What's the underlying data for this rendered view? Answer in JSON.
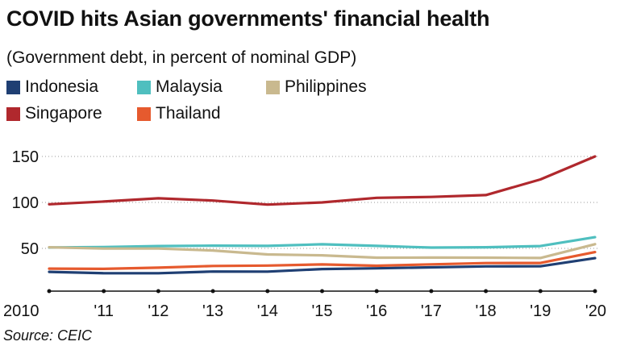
{
  "title": "COVID hits Asian governments' financial health",
  "subtitle": "(Government debt, in percent of nominal GDP)",
  "source": "Source: CEIC",
  "legend": [
    {
      "label": "Indonesia",
      "color": "#1f3f73"
    },
    {
      "label": "Malaysia",
      "color": "#4fbfbf"
    },
    {
      "label": "Philippines",
      "color": "#c9b98f"
    },
    {
      "label": "Singapore",
      "color": "#b0282d"
    },
    {
      "label": "Thailand",
      "color": "#e65a2e"
    }
  ],
  "chart_data": {
    "type": "line",
    "title": "COVID hits Asian governments' financial health",
    "subtitle": "(Government debt, in percent of nominal GDP)",
    "xlabel": "",
    "ylabel": "",
    "categories": [
      "2010",
      "'11",
      "'12",
      "'13",
      "'14",
      "'15",
      "'16",
      "'17",
      "'18",
      "'19",
      "'20"
    ],
    "yticks": [
      "50",
      "100",
      "150"
    ],
    "ylim": [
      0,
      160
    ],
    "grid": "dotted horizontal",
    "series": [
      {
        "name": "Indonesia",
        "color": "#1f3f73",
        "values": [
          24.5,
          23,
          23,
          24.8,
          24.7,
          27.5,
          28.3,
          29.4,
          30.4,
          30.5,
          39.4
        ]
      },
      {
        "name": "Malaysia",
        "color": "#4fbfbf",
        "values": [
          51,
          51.5,
          52.5,
          53,
          52.7,
          54.5,
          52.7,
          50.9,
          51.2,
          52.5,
          62.2
        ]
      },
      {
        "name": "Philippines",
        "color": "#c9b98f",
        "values": [
          51.2,
          49.8,
          49.8,
          47.7,
          43.4,
          42.5,
          39.9,
          40,
          39.9,
          39.6,
          54.6
        ]
      },
      {
        "name": "Singapore",
        "color": "#b0282d",
        "values": [
          98,
          101,
          104.5,
          102,
          97.6,
          100,
          105,
          106,
          108,
          125,
          150
        ]
      },
      {
        "name": "Thailand",
        "color": "#e65a2e",
        "values": [
          28,
          27.7,
          29,
          30.9,
          31.3,
          32.5,
          31.1,
          32.6,
          34,
          34.1,
          46
        ]
      }
    ]
  }
}
